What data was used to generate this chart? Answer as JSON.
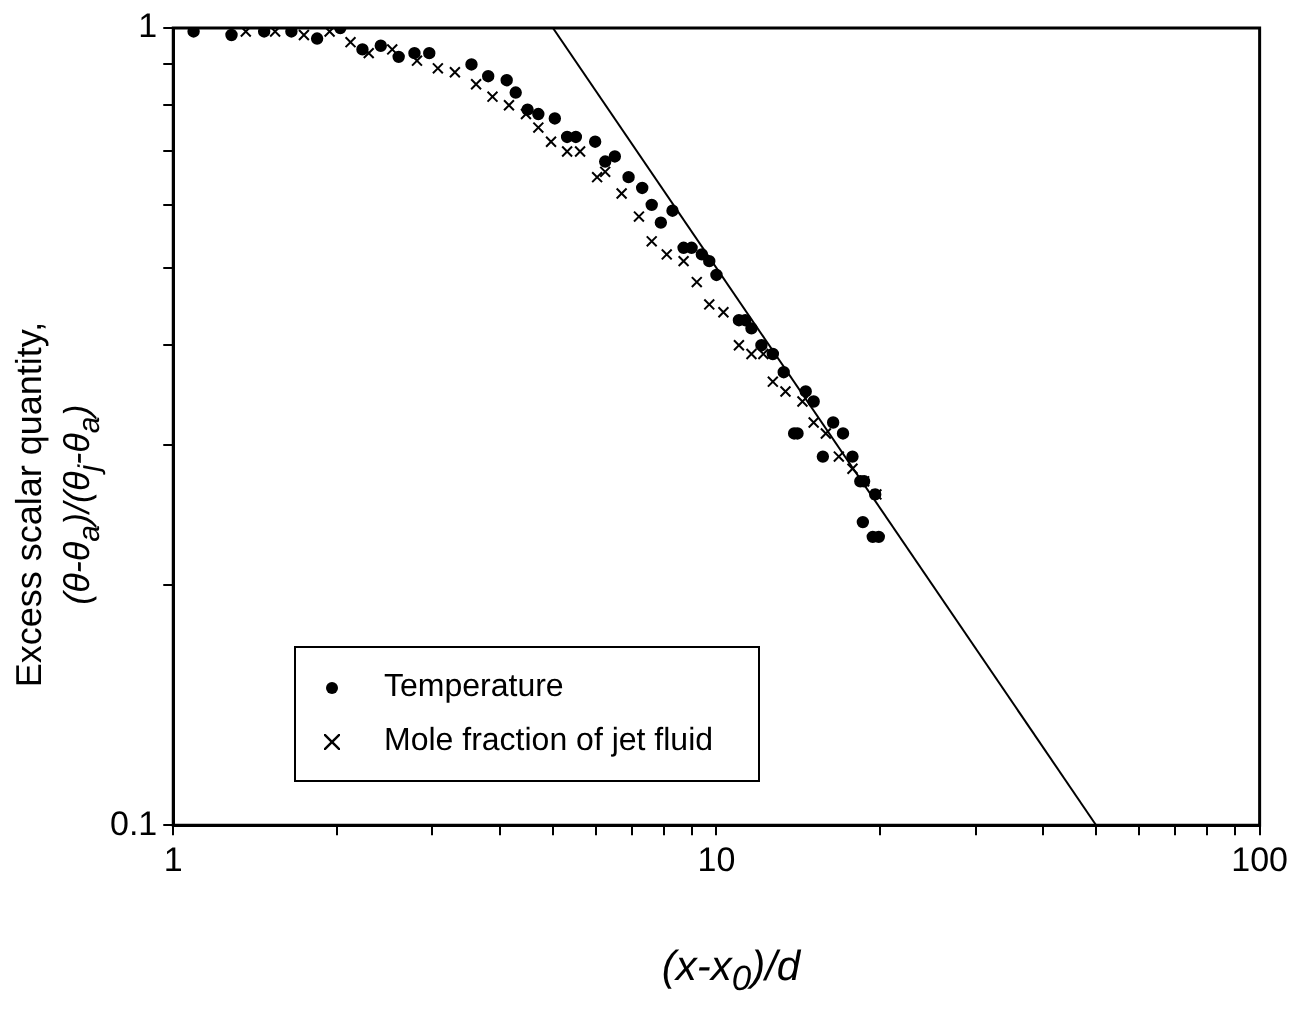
{
  "chart_data": {
    "type": "scatter",
    "xlabel": "(x-x$_{0}$)/d",
    "ylabel": "Excess scalar quantity, (θ-θ$_{a}$)/(θ$_{j}$-θ$_{a}$)",
    "log": "xy",
    "grid": false,
    "legend": "bottom left",
    "xlim": [
      1,
      100
    ],
    "ylim": [
      0.1,
      1
    ],
    "xticks": [
      1,
      {
        "value": 2,
        "label": null
      },
      {
        "value": 3,
        "label": null
      },
      {
        "value": 4,
        "label": null
      },
      {
        "value": 5,
        "label": null
      },
      {
        "value": 6,
        "label": null
      },
      {
        "value": 7,
        "label": null
      },
      {
        "value": 8,
        "label": null
      },
      {
        "value": 9,
        "label": null
      },
      10,
      {
        "value": 20,
        "label": null
      },
      {
        "value": 30,
        "label": null
      },
      {
        "value": 40,
        "label": null
      },
      {
        "value": 50,
        "label": null
      },
      {
        "value": 60,
        "label": null
      },
      {
        "value": 70,
        "label": null
      },
      {
        "value": 80,
        "label": null
      },
      {
        "value": 90,
        "label": null
      },
      100
    ],
    "yticks": [
      0.1,
      {
        "value": 0.2,
        "label": null
      },
      {
        "value": 0.3,
        "label": null
      },
      {
        "value": 0.4,
        "label": null
      },
      {
        "value": 0.5,
        "label": null
      },
      {
        "value": 0.6,
        "label": null
      },
      {
        "value": 0.7,
        "label": null
      },
      {
        "value": 0.8,
        "label": null
      },
      {
        "value": 0.9,
        "label": null
      },
      1
    ],
    "series": [
      {
        "name": "Temperature",
        "type": "scatter",
        "marker": "circle",
        "color": "#000000",
        "x": [
          1.09,
          1.28,
          1.47,
          1.65,
          1.84,
          2.03,
          2.23,
          2.41,
          2.6,
          2.78,
          2.96,
          3.54,
          3.8,
          4.11,
          4.27,
          4.49,
          4.7,
          5.04,
          5.31,
          5.51,
          5.98,
          6.24,
          6.5,
          6.89,
          7.3,
          7.6,
          7.9,
          8.3,
          8.7,
          9.0,
          9.4,
          9.7,
          10.0,
          11.0,
          11.3,
          11.6,
          12.1,
          12.7,
          13.3,
          13.9,
          14.1,
          14.6,
          15.1,
          15.7,
          16.4,
          17.1,
          17.8,
          18.4,
          18.7,
          18.6,
          19.6,
          19.9,
          19.4
        ],
        "values": [
          0.99,
          0.98,
          0.99,
          0.99,
          0.97,
          1.0,
          0.94,
          0.95,
          0.92,
          0.93,
          0.93,
          0.9,
          0.87,
          0.86,
          0.83,
          0.79,
          0.78,
          0.77,
          0.73,
          0.73,
          0.72,
          0.68,
          0.69,
          0.65,
          0.63,
          0.6,
          0.57,
          0.59,
          0.53,
          0.53,
          0.52,
          0.51,
          0.49,
          0.43,
          0.43,
          0.42,
          0.4,
          0.39,
          0.37,
          0.31,
          0.31,
          0.35,
          0.34,
          0.29,
          0.32,
          0.31,
          0.29,
          0.27,
          0.27,
          0.24,
          0.26,
          0.23,
          0.23
        ]
      },
      {
        "name": "Mole fraction of jet fluid",
        "type": "scatter",
        "marker": "cross",
        "color": "#000000",
        "x": [
          1.36,
          1.54,
          1.74,
          1.94,
          2.12,
          2.29,
          2.53,
          2.81,
          3.07,
          3.3,
          3.61,
          3.87,
          4.15,
          4.46,
          4.7,
          4.96,
          5.31,
          5.61,
          6.03,
          6.24,
          6.69,
          7.2,
          7.6,
          8.1,
          8.7,
          9.2,
          9.7,
          10.3,
          11.0,
          11.6,
          12.2,
          12.7,
          13.4,
          14.4,
          15.1,
          15.9,
          16.8,
          17.8,
          18.7,
          19.7
        ],
        "values": [
          0.99,
          0.99,
          0.98,
          0.99,
          0.96,
          0.93,
          0.94,
          0.91,
          0.89,
          0.88,
          0.85,
          0.82,
          0.8,
          0.78,
          0.75,
          0.72,
          0.7,
          0.7,
          0.65,
          0.66,
          0.62,
          0.58,
          0.54,
          0.52,
          0.51,
          0.48,
          0.45,
          0.44,
          0.4,
          0.39,
          0.39,
          0.36,
          0.35,
          0.34,
          0.32,
          0.31,
          0.29,
          0.28,
          0.27,
          0.26
        ]
      },
      {
        "type": "line",
        "marker": "none",
        "line_style": "solid",
        "color": "#000000",
        "x": [
          5,
          50
        ],
        "values": [
          1,
          0.1
        ]
      }
    ]
  }
}
